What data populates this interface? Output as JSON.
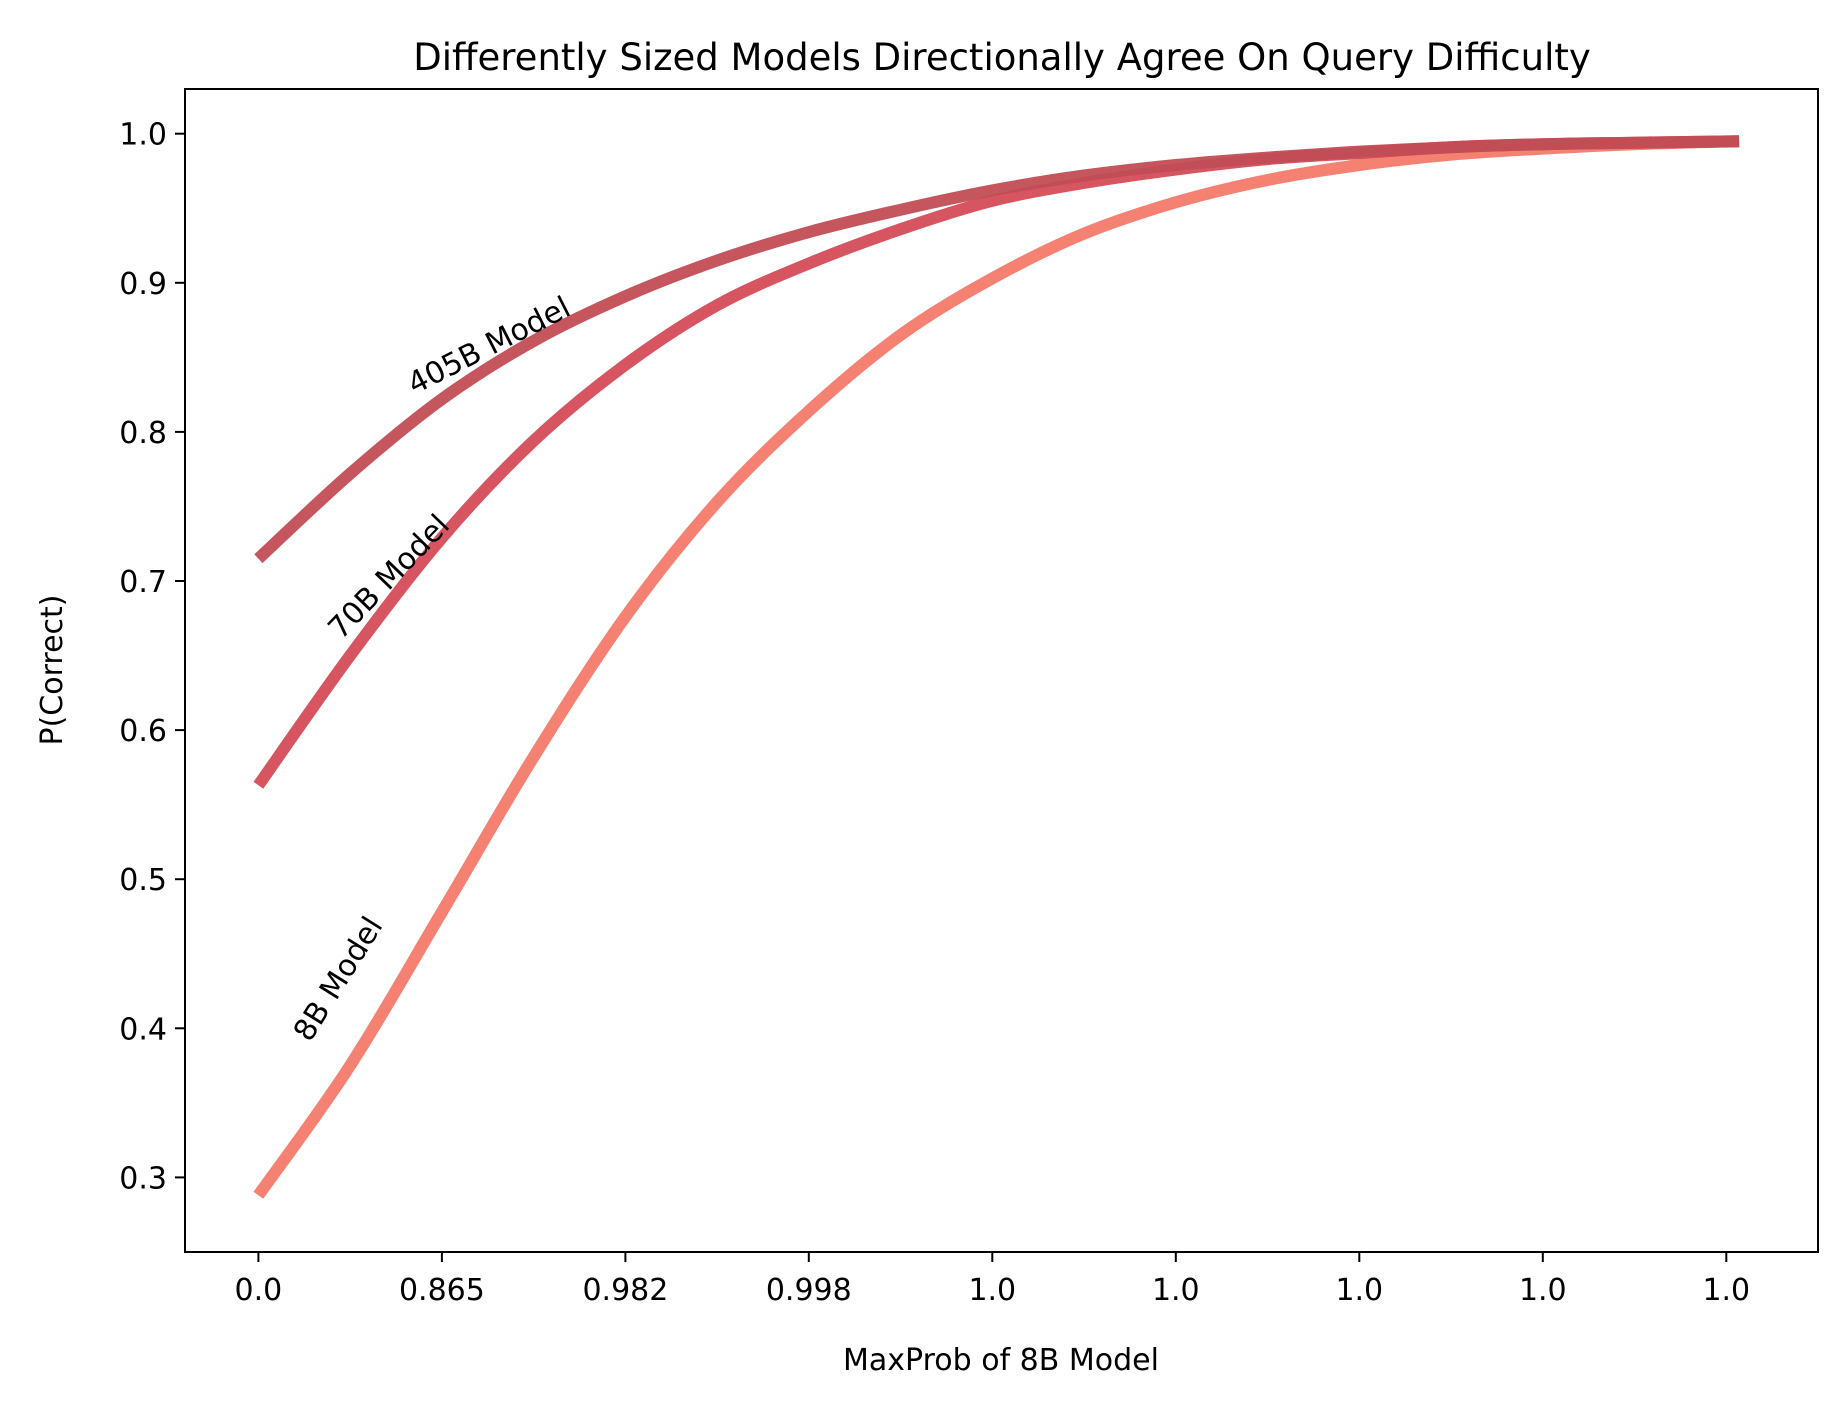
{
  "chart_data": {
    "type": "line",
    "title": "Differently Sized Models Directionally Agree On Query Difficulty",
    "xlabel": "MaxProb of 8B Model",
    "ylabel": "P(Correct)",
    "x_tick_labels": [
      "0.0",
      "0.865",
      "0.982",
      "0.998",
      "1.0",
      "1.0",
      "1.0",
      "1.0",
      "1.0"
    ],
    "x_tick_positions": [
      0,
      1,
      2,
      3,
      4,
      5,
      6,
      7,
      8
    ],
    "xlim": [
      -0.4,
      8.5
    ],
    "ylim": [
      0.25,
      1.03
    ],
    "y_ticks": [
      0.3,
      0.4,
      0.5,
      0.6,
      0.7,
      0.8,
      0.9,
      1.0
    ],
    "y_tick_labels": [
      "0.3",
      "0.4",
      "0.5",
      "0.6",
      "0.7",
      "0.8",
      "0.9",
      "1.0"
    ],
    "grid": false,
    "series": [
      {
        "name": "8B Model",
        "color": "#f47a6a",
        "x": [
          0,
          0.5,
          1,
          1.5,
          2,
          2.5,
          3,
          3.5,
          4,
          4.5,
          5,
          5.5,
          6,
          6.5,
          7,
          7.5,
          8.07
        ],
        "y": [
          0.288,
          0.375,
          0.478,
          0.582,
          0.676,
          0.753,
          0.814,
          0.865,
          0.903,
          0.933,
          0.954,
          0.969,
          0.979,
          0.986,
          0.99,
          0.993,
          0.995
        ]
      },
      {
        "name": "70B Model",
        "color": "#d44c57",
        "x": [
          0,
          0.5,
          1,
          1.5,
          2,
          2.5,
          3,
          3.5,
          4,
          4.5,
          5,
          5.5,
          6,
          6.5,
          7,
          7.5,
          8.07
        ],
        "y": [
          0.563,
          0.65,
          0.729,
          0.794,
          0.845,
          0.885,
          0.913,
          0.936,
          0.955,
          0.967,
          0.976,
          0.983,
          0.987,
          0.991,
          0.993,
          0.994,
          0.995
        ]
      },
      {
        "name": "405B Model",
        "color": "#c24d55",
        "x": [
          0,
          0.5,
          1,
          1.5,
          2,
          2.5,
          3,
          3.5,
          4,
          4.5,
          5,
          5.5,
          6,
          6.5,
          7,
          7.5,
          8.07
        ],
        "y": [
          0.715,
          0.772,
          0.822,
          0.861,
          0.891,
          0.915,
          0.934,
          0.949,
          0.962,
          0.972,
          0.979,
          0.984,
          0.988,
          0.991,
          0.993,
          0.994,
          0.995
        ]
      }
    ],
    "annotations": [
      {
        "text": "405B Model",
        "x": 0.85,
        "y": 0.825,
        "rotation": -27
      },
      {
        "text": "70B Model",
        "x": 0.45,
        "y": 0.66,
        "rotation": -46
      },
      {
        "text": "8B Model",
        "x": 0.28,
        "y": 0.39,
        "rotation": -58
      }
    ]
  }
}
